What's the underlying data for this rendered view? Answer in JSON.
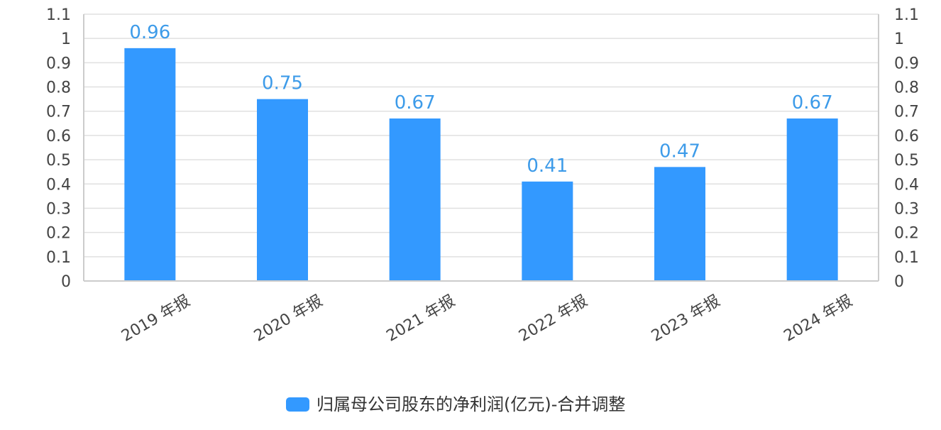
{
  "chart_data": {
    "type": "bar",
    "categories": [
      "2019 年报",
      "2020 年报",
      "2021 年报",
      "2022 年报",
      "2023 年报",
      "2024 年报"
    ],
    "series": [
      {
        "name": "归属母公司股东的净利润(亿元)-合并调整",
        "values": [
          0.96,
          0.75,
          0.67,
          0.41,
          0.47,
          0.67
        ]
      }
    ],
    "data_labels": [
      "0.96",
      "0.75",
      "0.67",
      "0.41",
      "0.47",
      "0.67"
    ],
    "ylim": [
      0,
      1.1
    ],
    "yticks": [
      "0",
      "0.1",
      "0.2",
      "0.3",
      "0.4",
      "0.5",
      "0.6",
      "0.7",
      "0.8",
      "0.9",
      "1",
      "1.1"
    ],
    "secondary_y_axis": true,
    "grid": true,
    "legend_position": "bottom",
    "colors": {
      "bar": "#3399ff",
      "data_label": "#3d9be9",
      "grid": "#e0e0e0",
      "axis": "#cccccc"
    }
  }
}
